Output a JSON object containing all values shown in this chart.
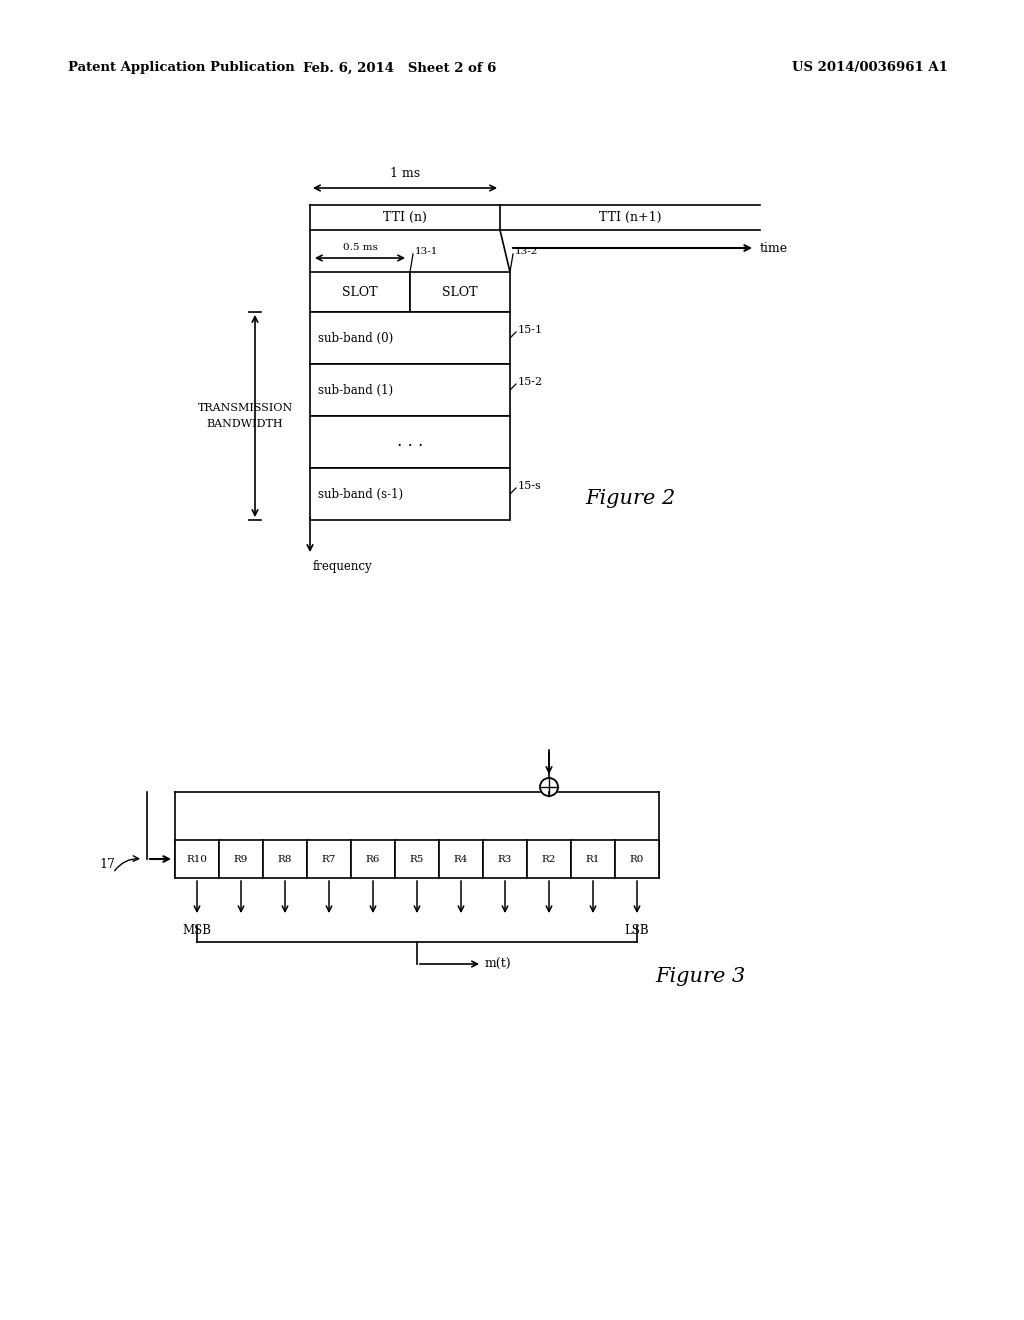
{
  "bg_color": "#ffffff",
  "header_left": "Patent Application Publication",
  "header_mid": "Feb. 6, 2014   Sheet 2 of 6",
  "header_right": "US 2014/0036961 A1",
  "fig2_label": "Figure 2",
  "fig3_label": "Figure 3",
  "reg_labels": [
    "R10",
    "R9",
    "R8",
    "R7",
    "R6",
    "R5",
    "R4",
    "R3",
    "R2",
    "R1",
    "R0"
  ]
}
